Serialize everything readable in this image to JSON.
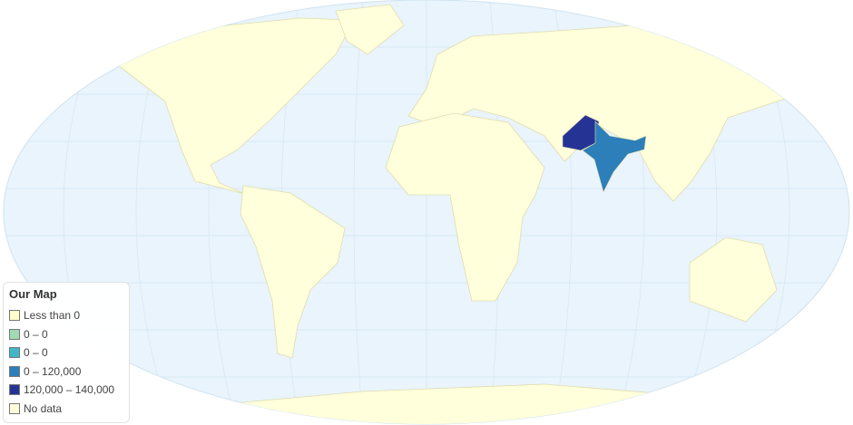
{
  "legend": {
    "title": "Our Map",
    "items": [
      {
        "label": "Less than 0",
        "color": "#ffffcc"
      },
      {
        "label": "0 – 0",
        "color": "#a1dab4"
      },
      {
        "label": "0 – 0",
        "color": "#41b6c4"
      },
      {
        "label": "0 – 120,000",
        "color": "#2c7fb8"
      },
      {
        "label": "120,000 – 140,000",
        "color": "#253494"
      },
      {
        "label": "No data",
        "color": "#ffffdc"
      }
    ]
  },
  "regions": [
    {
      "name": "India",
      "bin": "0 – 120,000",
      "color": "#2c7fb8"
    },
    {
      "name": "Pakistan",
      "bin": "120,000 – 140,000",
      "color": "#253494"
    }
  ],
  "colors": {
    "ocean": "#e9f4fc",
    "land": "#ffffdc"
  }
}
